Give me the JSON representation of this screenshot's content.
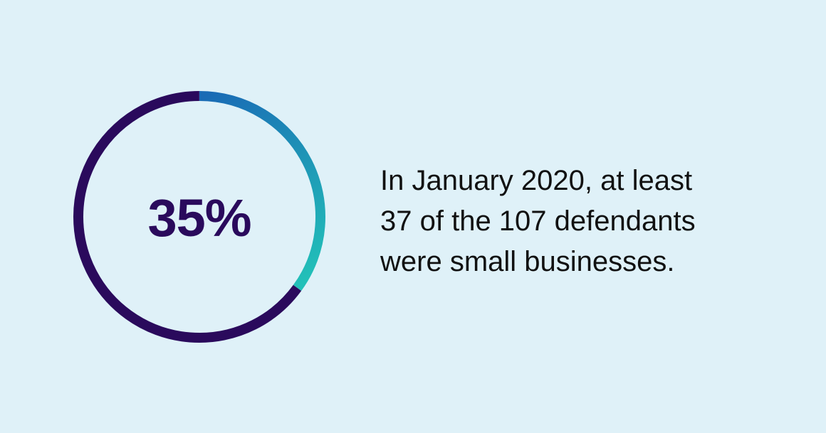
{
  "chart_data": {
    "type": "pie",
    "variant": "donut",
    "value_label": "35%",
    "highlight_fraction": 0.35,
    "remainder_fraction": 0.65,
    "colors": {
      "highlight_start": "#1a6bb5",
      "highlight_end": "#22c0b8",
      "remainder": "#2a0a5c",
      "label": "#2a0a5c"
    }
  },
  "caption": {
    "lines": [
      "In January 2020, at least",
      "37 of the 107 defendants",
      "were small businesses."
    ]
  },
  "colors": {
    "background": "#dff1f8",
    "text": "#111111"
  }
}
